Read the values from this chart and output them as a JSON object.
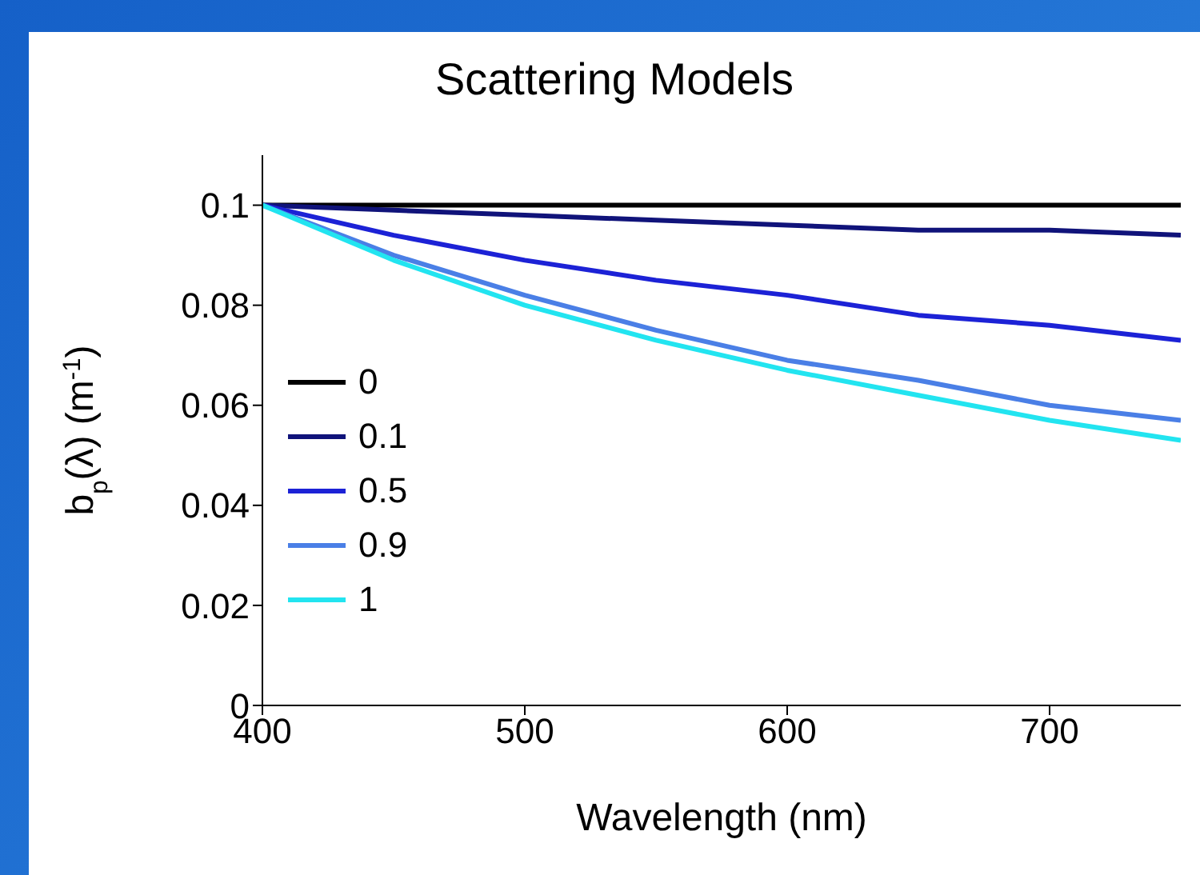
{
  "chart_data": {
    "type": "line",
    "title": "Scattering Models",
    "xlabel": "Wavelength (nm)",
    "ylabel": "b$_{p}$(λ) (m$^{-1}$)",
    "x": [
      400,
      450,
      500,
      550,
      600,
      650,
      700,
      750
    ],
    "series": [
      {
        "name": "0",
        "color": "#000000",
        "values": [
          0.1,
          0.1,
          0.1,
          0.1,
          0.1,
          0.1,
          0.1,
          0.1
        ]
      },
      {
        "name": "0.1",
        "color": "#10137a",
        "values": [
          0.1,
          0.099,
          0.098,
          0.097,
          0.096,
          0.095,
          0.095,
          0.094
        ]
      },
      {
        "name": "0.5",
        "color": "#1c22d6",
        "values": [
          0.1,
          0.094,
          0.089,
          0.085,
          0.082,
          0.078,
          0.076,
          0.073
        ]
      },
      {
        "name": "0.9",
        "color": "#4a7fe6",
        "values": [
          0.1,
          0.09,
          0.082,
          0.075,
          0.069,
          0.065,
          0.06,
          0.057
        ]
      },
      {
        "name": "1",
        "color": "#22e4f0",
        "values": [
          0.1,
          0.089,
          0.08,
          0.073,
          0.067,
          0.062,
          0.057,
          0.053
        ]
      }
    ],
    "xlim": [
      400,
      750
    ],
    "xticks": [
      400,
      500,
      600,
      700
    ],
    "ylim": [
      0,
      0.11
    ],
    "yticks": [
      0,
      0.02,
      0.04,
      0.06,
      0.08,
      0.1
    ],
    "grid": false,
    "legend": "left",
    "marker": "none",
    "line_style": "solid"
  }
}
